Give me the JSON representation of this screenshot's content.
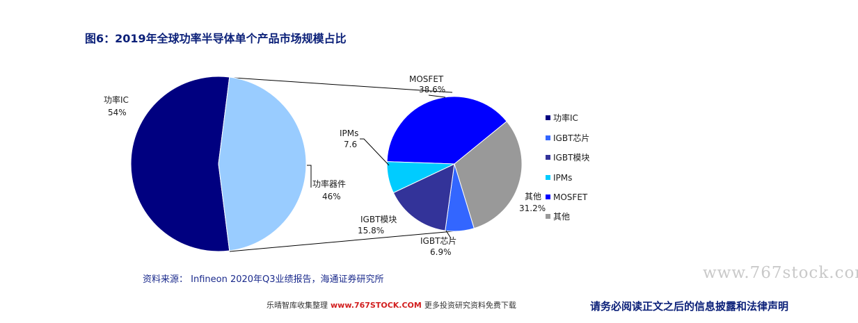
{
  "header": {
    "title": "图6：2019年全球功率半导体单个产品市场规模占比"
  },
  "chart_data": [
    {
      "type": "pie",
      "title": "",
      "slices": [
        {
          "label": "功率IC",
          "value_text": "54%",
          "value": 54,
          "color": "#000080"
        },
        {
          "label": "功率器件",
          "value_text": "46%",
          "value": 46,
          "color": "#99ccff"
        }
      ]
    },
    {
      "type": "pie",
      "title": "",
      "slices": [
        {
          "label": "MOSFET",
          "value_text": "38.6%",
          "value": 38.6,
          "color": "#0000ff"
        },
        {
          "label": "其他",
          "value_text": "31.2%",
          "value": 31.2,
          "color": "#999999"
        },
        {
          "label": "IGBT芯片",
          "value_text": "6.9%",
          "value": 6.9,
          "color": "#3366ff"
        },
        {
          "label": "IGBT模块",
          "value_text": "15.8%",
          "value": 15.8,
          "color": "#333399"
        },
        {
          "label": "IPMs",
          "value_text": "7.6",
          "value": 7.6,
          "color": "#00ccff"
        }
      ],
      "legend": {
        "placement": "right",
        "entries": [
          {
            "label": "功率IC",
            "color": "#000080"
          },
          {
            "label": "IGBT芯片",
            "color": "#3366ff"
          },
          {
            "label": "IGBT模块",
            "color": "#333399"
          },
          {
            "label": "IPMs",
            "color": "#00ccff"
          },
          {
            "label": "MOSFET",
            "color": "#0000ff"
          },
          {
            "label": "其他",
            "color": "#999999"
          }
        ]
      }
    }
  ],
  "source": {
    "text": "资料来源：  Infineon 2020年Q3业绩报告，海通证券研究所"
  },
  "watermark": {
    "text": "www.767stock.com"
  },
  "footer": {
    "prefix": "乐晴智库收集整理",
    "site": "www.767STOCK.COM",
    "suffix": "更多投资研究资料免费下载"
  },
  "disclaimer": {
    "text": "请务必阅读正文之后的信息披露和法律声明"
  }
}
